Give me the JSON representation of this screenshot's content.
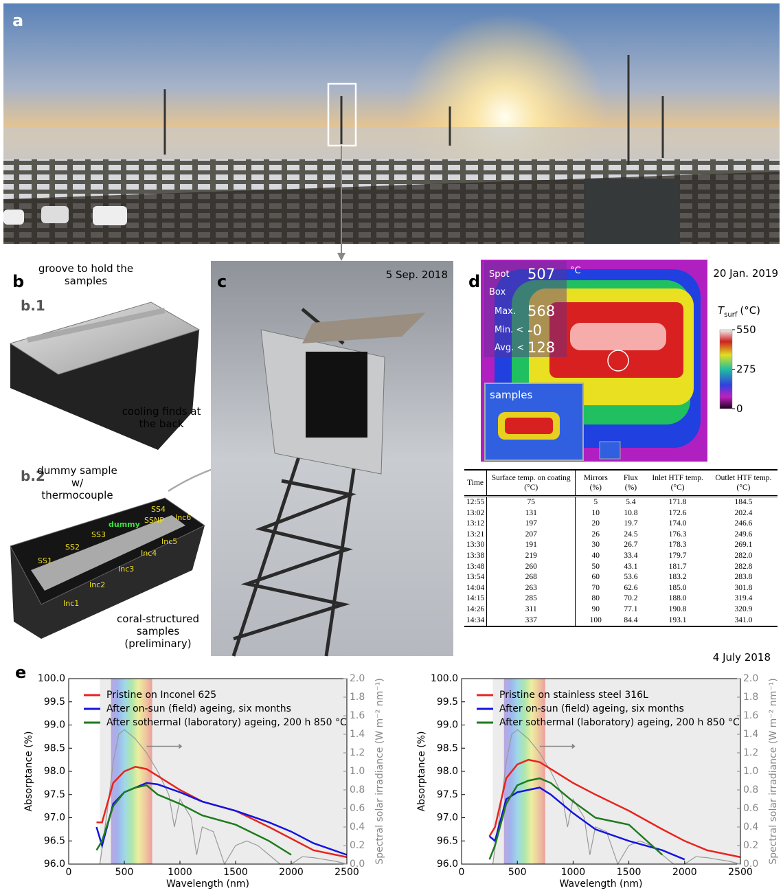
{
  "panels": {
    "a": {
      "label": "a"
    },
    "b": {
      "label": "b",
      "sub1": {
        "label": "b.1",
        "annotations": [
          "groove to hold the samples",
          "cooling finds at the back"
        ]
      },
      "sub2": {
        "label": "b.2",
        "annotations": [
          "dummy sample w/ thermocouple",
          "coral-structured samples (preliminary)"
        ],
        "samples": [
          "SS1",
          "SS2",
          "SS3",
          "dummy",
          "SSNP",
          "SS4",
          "Inc6",
          "Inc5",
          "Inc4",
          "Inc3",
          "Inc2",
          "Inc1"
        ]
      }
    },
    "c": {
      "label": "c",
      "date": "5 Sep. 2018"
    },
    "d": {
      "label": "d",
      "date": "20 Jan. 2019",
      "overlay": {
        "spot": "Spot",
        "spot_value": "507",
        "unit": "°C",
        "box": "Box",
        "max": "Max.",
        "max_value": "568",
        "min": "Min. <",
        "min_value": "-0",
        "avg": "Avg. <",
        "avg_value": "128",
        "inset": "samples"
      },
      "colorbar": {
        "symbol": "T",
        "subscript": "surf",
        "unit": "(°C)",
        "lim": [
          0,
          550
        ],
        "ticks": [
          0,
          275,
          550
        ]
      },
      "table": {
        "headers": [
          "Time",
          "Surface temp. on coating (°C)",
          "Mirrors (%)",
          "Flux (%)",
          "Inlet HTF temp. (°C)",
          "Outlet HTF temp. (°C)"
        ],
        "rows": [
          [
            "12:55",
            "75",
            "5",
            "5.4",
            "171.8",
            "184.5"
          ],
          [
            "13:02",
            "131",
            "10",
            "10.8",
            "172.6",
            "202.4"
          ],
          [
            "13:12",
            "197",
            "20",
            "19.7",
            "174.0",
            "246.6"
          ],
          [
            "13:21",
            "207",
            "26",
            "24.5",
            "176.3",
            "249.6"
          ],
          [
            "13:30",
            "191",
            "30",
            "26.7",
            "178.3",
            "269.1"
          ],
          [
            "13:38",
            "219",
            "40",
            "33.4",
            "179.7",
            "282.0"
          ],
          [
            "13:48",
            "260",
            "50",
            "43.1",
            "181.7",
            "282.8"
          ],
          [
            "13:54",
            "268",
            "60",
            "53.6",
            "183.2",
            "283.8"
          ],
          [
            "14:04",
            "263",
            "70",
            "62.6",
            "185.0",
            "301.8"
          ],
          [
            "14:15",
            "285",
            "80",
            "70.2",
            "188.0",
            "319.4"
          ],
          [
            "14:26",
            "311",
            "90",
            "77.1",
            "190.8",
            "320.9"
          ],
          [
            "14:34",
            "337",
            "100",
            "84.4",
            "193.1",
            "341.0"
          ]
        ],
        "caption": "4 July 2018"
      }
    },
    "e": {
      "label": "e"
    }
  },
  "chart_data": [
    {
      "type": "line",
      "x_label": "Wavelength (nm)",
      "y_label": "Absorptance (%)",
      "y2_label": "Spectral solar irradiance (W m⁻² nm⁻¹)",
      "xlim": [
        0,
        2500
      ],
      "xticks": [
        0,
        500,
        1000,
        1500,
        2000,
        2500
      ],
      "ylim": [
        96,
        100
      ],
      "yticks": [
        {
          "value": 96,
          "label": "96.0"
        },
        96.5,
        {
          "value": 97,
          "label": "97.0"
        },
        97.5,
        {
          "value": 98,
          "label": "98.0"
        },
        98.5,
        {
          "value": 99,
          "label": "99.0"
        },
        99.5,
        {
          "value": 100,
          "label": "100.0"
        }
      ],
      "y2lim": [
        0,
        2
      ],
      "y2ticks": [
        {
          "value": 0,
          "label": "0.0"
        },
        0.2,
        0.4,
        0.6,
        0.8,
        {
          "value": 1,
          "label": "1.0"
        },
        1.2,
        1.4,
        1.6,
        1.8,
        {
          "value": 2,
          "label": "2.0"
        }
      ],
      "x": [
        250,
        300,
        400,
        500,
        600,
        700,
        800,
        1000,
        1200,
        1500,
        1800,
        2000,
        2200,
        2500
      ],
      "series": [
        {
          "name": "Pristine on Inconel 625",
          "color": "#e8231e",
          "values": [
            96.9,
            96.9,
            97.75,
            98.0,
            98.1,
            98.05,
            97.9,
            97.6,
            97.35,
            97.15,
            96.8,
            96.55,
            96.3,
            96.15
          ]
        },
        {
          "name": "After on-sun (field) ageing, six months",
          "color": "#1414e0",
          "values": [
            96.8,
            96.4,
            97.3,
            97.55,
            97.65,
            97.75,
            97.72,
            97.55,
            97.35,
            97.15,
            96.9,
            96.7,
            96.45,
            96.2
          ]
        },
        {
          "name": "After sothermal (laboratory) ageing, 200 h 850 °C",
          "color": "#1e7a1e",
          "values": [
            96.3,
            96.5,
            97.25,
            97.55,
            97.65,
            97.7,
            97.5,
            97.3,
            97.05,
            96.85,
            96.5,
            96.2,
            null,
            null
          ]
        }
      ],
      "spectrum": {
        "color": "#999999",
        "x": [
          280,
          350,
          400,
          450,
          500,
          550,
          600,
          700,
          800,
          900,
          950,
          1000,
          1100,
          1150,
          1200,
          1300,
          1400,
          1500,
          1600,
          1700,
          1800,
          1900,
          2000,
          2100,
          2200,
          2300,
          2400,
          2500
        ],
        "values": [
          0,
          0.6,
          1.1,
          1.4,
          1.45,
          1.4,
          1.35,
          1.2,
          1.0,
          0.75,
          0.4,
          0.7,
          0.5,
          0.1,
          0.4,
          0.35,
          0,
          0.2,
          0.25,
          0.2,
          0.1,
          0,
          0,
          0.08,
          0.07,
          0.05,
          0.03,
          0
        ]
      }
    },
    {
      "type": "line",
      "x_label": "Wavelength (nm)",
      "y_label": "Absorptance (%)",
      "y2_label": "Spectral solar irradiance (W m⁻² nm⁻¹)",
      "xlim": [
        0,
        2500
      ],
      "xticks": [
        0,
        500,
        1000,
        1500,
        2000,
        2500
      ],
      "ylim": [
        96,
        100
      ],
      "yticks": [
        {
          "value": 96,
          "label": "96.0"
        },
        96.5,
        {
          "value": 97,
          "label": "97.0"
        },
        97.5,
        {
          "value": 98,
          "label": "98.0"
        },
        98.5,
        {
          "value": 99,
          "label": "99.0"
        },
        99.5,
        {
          "value": 100,
          "label": "100.0"
        }
      ],
      "y2lim": [
        0,
        2
      ],
      "y2ticks": [
        {
          "value": 0,
          "label": "0.0"
        },
        0.2,
        0.4,
        0.6,
        0.8,
        {
          "value": 1,
          "label": "1.0"
        },
        1.2,
        1.4,
        1.6,
        1.8,
        {
          "value": 2,
          "label": "2.0"
        }
      ],
      "x": [
        250,
        300,
        400,
        500,
        600,
        700,
        800,
        1000,
        1200,
        1500,
        1800,
        2000,
        2200,
        2500
      ],
      "series": [
        {
          "name": "Pristine on stainless steel 316L",
          "color": "#e8231e",
          "values": [
            96.6,
            96.8,
            97.85,
            98.15,
            98.25,
            98.2,
            98.05,
            97.75,
            97.5,
            97.15,
            96.75,
            96.5,
            96.3,
            96.15
          ]
        },
        {
          "name": "After on-sun (field) ageing, six months",
          "color": "#1414e0",
          "values": [
            96.6,
            96.5,
            97.4,
            97.55,
            97.6,
            97.65,
            97.5,
            97.1,
            96.75,
            96.5,
            96.3,
            96.1,
            null,
            null
          ]
        },
        {
          "name": "After sothermal (laboratory) ageing, 200 h 850 °C",
          "color": "#1e7a1e",
          "values": [
            96.1,
            96.4,
            97.3,
            97.7,
            97.8,
            97.85,
            97.75,
            97.35,
            97.0,
            96.85,
            96.2,
            null,
            null,
            null
          ]
        }
      ],
      "spectrum": {
        "color": "#999999",
        "x": [
          280,
          350,
          400,
          450,
          500,
          550,
          600,
          700,
          800,
          900,
          950,
          1000,
          1100,
          1150,
          1200,
          1300,
          1400,
          1500,
          1600,
          1700,
          1800,
          1900,
          2000,
          2100,
          2200,
          2300,
          2400,
          2500
        ],
        "values": [
          0,
          0.6,
          1.1,
          1.4,
          1.45,
          1.4,
          1.35,
          1.2,
          1.0,
          0.75,
          0.4,
          0.7,
          0.5,
          0.1,
          0.4,
          0.35,
          0,
          0.2,
          0.25,
          0.2,
          0.1,
          0,
          0,
          0.08,
          0.07,
          0.05,
          0.03,
          0
        ]
      }
    }
  ]
}
